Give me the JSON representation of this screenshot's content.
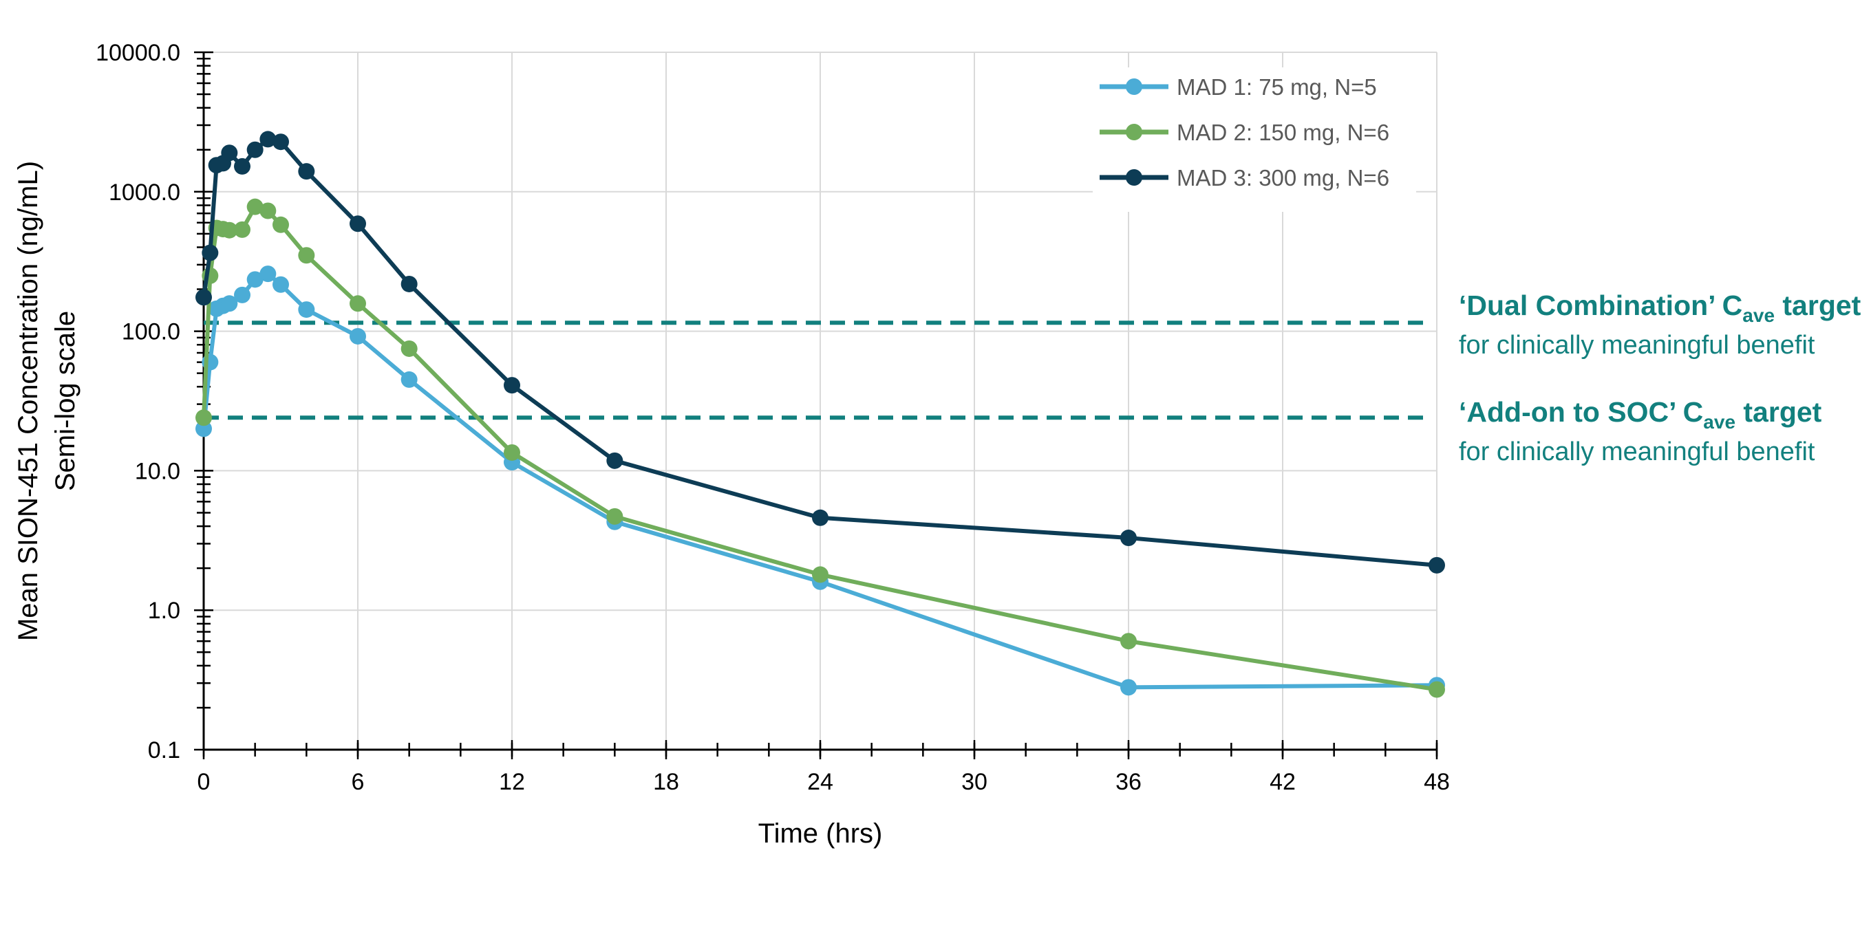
{
  "chart_data": {
    "type": "line",
    "title": "",
    "xlabel": "Time (hrs)",
    "ylabel": "Mean SION-451 Concentration (ng/mL)",
    "ylabel2": "Semi-log scale",
    "y_scale": "log",
    "xlim": [
      0,
      48
    ],
    "ylim": [
      0.1,
      10000
    ],
    "x_ticks": [
      0,
      6,
      12,
      18,
      24,
      30,
      36,
      42,
      48
    ],
    "x_tick_labels": [
      "0",
      "6",
      "12",
      "18",
      "24",
      "30",
      "36",
      "42",
      "48"
    ],
    "y_ticks": [
      0.1,
      1,
      10,
      100,
      1000,
      10000
    ],
    "y_tick_labels": [
      "0.1",
      "1.0",
      "10.0",
      "100.0",
      "1000.0",
      "10000.0"
    ],
    "grid": true,
    "legend_position": "top-right",
    "series": [
      {
        "name": "MAD 1: 75 mg, N=5",
        "color": "#4bacd6",
        "points": [
          [
            0,
            20
          ],
          [
            0.25,
            60
          ],
          [
            0.5,
            145
          ],
          [
            0.75,
            152
          ],
          [
            1,
            158
          ],
          [
            1.5,
            182
          ],
          [
            2,
            235
          ],
          [
            2.5,
            258
          ],
          [
            3,
            216
          ],
          [
            4,
            143
          ],
          [
            6,
            92
          ],
          [
            8,
            45
          ],
          [
            12,
            11.5
          ],
          [
            16,
            4.3
          ],
          [
            24,
            1.6
          ],
          [
            36,
            0.28
          ],
          [
            48,
            0.29
          ]
        ]
      },
      {
        "name": "MAD 2: 150 mg, N=6",
        "color": "#70ad5b",
        "points": [
          [
            0,
            24
          ],
          [
            0.25,
            250
          ],
          [
            0.5,
            550
          ],
          [
            0.75,
            540
          ],
          [
            1,
            530
          ],
          [
            1.5,
            535
          ],
          [
            2,
            780
          ],
          [
            2.5,
            730
          ],
          [
            3,
            580
          ],
          [
            4,
            350
          ],
          [
            6,
            158
          ],
          [
            8,
            75
          ],
          [
            12,
            13.5
          ],
          [
            16,
            4.7
          ],
          [
            24,
            1.8
          ],
          [
            36,
            0.6
          ],
          [
            48,
            0.27
          ]
        ]
      },
      {
        "name": "MAD 3: 300 mg, N=6",
        "color": "#0d3c55",
        "points": [
          [
            0,
            175
          ],
          [
            0.25,
            365
          ],
          [
            0.5,
            1550
          ],
          [
            0.75,
            1600
          ],
          [
            1,
            1900
          ],
          [
            1.5,
            1520
          ],
          [
            2,
            2000
          ],
          [
            2.5,
            2380
          ],
          [
            3,
            2280
          ],
          [
            4,
            1400
          ],
          [
            6,
            590
          ],
          [
            8,
            218
          ],
          [
            12,
            41
          ],
          [
            16,
            11.8
          ],
          [
            24,
            4.6
          ],
          [
            36,
            3.3
          ],
          [
            48,
            2.1
          ]
        ]
      }
    ],
    "reference_lines": [
      {
        "value": 115,
        "color": "#12807e",
        "title_main": "‘Dual Combination’ C",
        "title_sub": "ave",
        "title_end": " target",
        "subtitle": "for clinically meaningful benefit"
      },
      {
        "value": 24,
        "color": "#12807e",
        "title_main": "‘Add-on to SOC’ C",
        "title_sub": "ave",
        "title_end": " target",
        "subtitle": "for clinically meaningful benefit"
      }
    ]
  }
}
